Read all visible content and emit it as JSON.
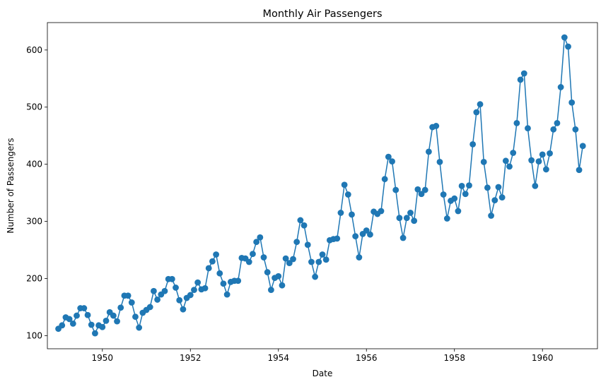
{
  "chart_data": {
    "type": "line",
    "title": "Monthly Air Passengers",
    "xlabel": "Date",
    "ylabel": "Number of Passengers",
    "x_axis_type": "date",
    "xlim": [
      "1948-10-01",
      "1961-04-01"
    ],
    "ylim": [
      77,
      648
    ],
    "x_ticks": [
      {
        "date": "1950-01-01",
        "label": "1950"
      },
      {
        "date": "1952-01-01",
        "label": "1952"
      },
      {
        "date": "1954-01-01",
        "label": "1954"
      },
      {
        "date": "1956-01-01",
        "label": "1956"
      },
      {
        "date": "1958-01-01",
        "label": "1958"
      },
      {
        "date": "1960-01-01",
        "label": "1960"
      }
    ],
    "y_ticks": [
      100,
      200,
      300,
      400,
      500,
      600
    ],
    "grid": false,
    "marker": "circle",
    "colors": {
      "series": "#1f77b4",
      "axes": "#000000",
      "background": "#ffffff"
    },
    "series": [
      {
        "x": [
          "1949-01-01",
          "1949-02-01",
          "1949-03-01",
          "1949-04-01",
          "1949-05-01",
          "1949-06-01",
          "1949-07-01",
          "1949-08-01",
          "1949-09-01",
          "1949-10-01",
          "1949-11-01",
          "1949-12-01",
          "1950-01-01",
          "1950-02-01",
          "1950-03-01",
          "1950-04-01",
          "1950-05-01",
          "1950-06-01",
          "1950-07-01",
          "1950-08-01",
          "1950-09-01",
          "1950-10-01",
          "1950-11-01",
          "1950-12-01",
          "1951-01-01",
          "1951-02-01",
          "1951-03-01",
          "1951-04-01",
          "1951-05-01",
          "1951-06-01",
          "1951-07-01",
          "1951-08-01",
          "1951-09-01",
          "1951-10-01",
          "1951-11-01",
          "1951-12-01",
          "1952-01-01",
          "1952-02-01",
          "1952-03-01",
          "1952-04-01",
          "1952-05-01",
          "1952-06-01",
          "1952-07-01",
          "1952-08-01",
          "1952-09-01",
          "1952-10-01",
          "1952-11-01",
          "1952-12-01",
          "1953-01-01",
          "1953-02-01",
          "1953-03-01",
          "1953-04-01",
          "1953-05-01",
          "1953-06-01",
          "1953-07-01",
          "1953-08-01",
          "1953-09-01",
          "1953-10-01",
          "1953-11-01",
          "1953-12-01",
          "1954-01-01",
          "1954-02-01",
          "1954-03-01",
          "1954-04-01",
          "1954-05-01",
          "1954-06-01",
          "1954-07-01",
          "1954-08-01",
          "1954-09-01",
          "1954-10-01",
          "1954-11-01",
          "1954-12-01",
          "1955-01-01",
          "1955-02-01",
          "1955-03-01",
          "1955-04-01",
          "1955-05-01",
          "1955-06-01",
          "1955-07-01",
          "1955-08-01",
          "1955-09-01",
          "1955-10-01",
          "1955-11-01",
          "1955-12-01",
          "1956-01-01",
          "1956-02-01",
          "1956-03-01",
          "1956-04-01",
          "1956-05-01",
          "1956-06-01",
          "1956-07-01",
          "1956-08-01",
          "1956-09-01",
          "1956-10-01",
          "1956-11-01",
          "1956-12-01",
          "1957-01-01",
          "1957-02-01",
          "1957-03-01",
          "1957-04-01",
          "1957-05-01",
          "1957-06-01",
          "1957-07-01",
          "1957-08-01",
          "1957-09-01",
          "1957-10-01",
          "1957-11-01",
          "1957-12-01",
          "1958-01-01",
          "1958-02-01",
          "1958-03-01",
          "1958-04-01",
          "1958-05-01",
          "1958-06-01",
          "1958-07-01",
          "1958-08-01",
          "1958-09-01",
          "1958-10-01",
          "1958-11-01",
          "1958-12-01",
          "1959-01-01",
          "1959-02-01",
          "1959-03-01",
          "1959-04-01",
          "1959-05-01",
          "1959-06-01",
          "1959-07-01",
          "1959-08-01",
          "1959-09-01",
          "1959-10-01",
          "1959-11-01",
          "1959-12-01",
          "1960-01-01",
          "1960-02-01",
          "1960-03-01",
          "1960-04-01",
          "1960-05-01",
          "1960-06-01",
          "1960-07-01",
          "1960-08-01",
          "1960-09-01",
          "1960-10-01",
          "1960-11-01",
          "1960-12-01"
        ],
        "y": [
          112,
          118,
          132,
          129,
          121,
          135,
          148,
          148,
          136,
          119,
          104,
          118,
          115,
          126,
          141,
          135,
          125,
          149,
          170,
          170,
          158,
          133,
          114,
          140,
          145,
          150,
          178,
          163,
          172,
          178,
          199,
          199,
          184,
          162,
          146,
          166,
          171,
          180,
          193,
          181,
          183,
          218,
          230,
          242,
          209,
          191,
          172,
          194,
          196,
          196,
          236,
          235,
          229,
          243,
          264,
          272,
          237,
          211,
          180,
          201,
          204,
          188,
          235,
          227,
          234,
          264,
          302,
          293,
          259,
          229,
          203,
          229,
          242,
          233,
          267,
          269,
          270,
          315,
          364,
          347,
          312,
          274,
          237,
          278,
          284,
          277,
          317,
          313,
          318,
          374,
          413,
          405,
          355,
          306,
          271,
          306,
          315,
          301,
          356,
          348,
          355,
          422,
          465,
          467,
          404,
          347,
          305,
          336,
          340,
          318,
          362,
          348,
          363,
          435,
          491,
          505,
          404,
          359,
          310,
          337,
          360,
          342,
          406,
          396,
          420,
          472,
          548,
          559,
          463,
          407,
          362,
          405,
          417,
          391,
          419,
          461,
          472,
          535,
          622,
          606,
          508,
          461,
          390,
          432
        ]
      }
    ]
  }
}
